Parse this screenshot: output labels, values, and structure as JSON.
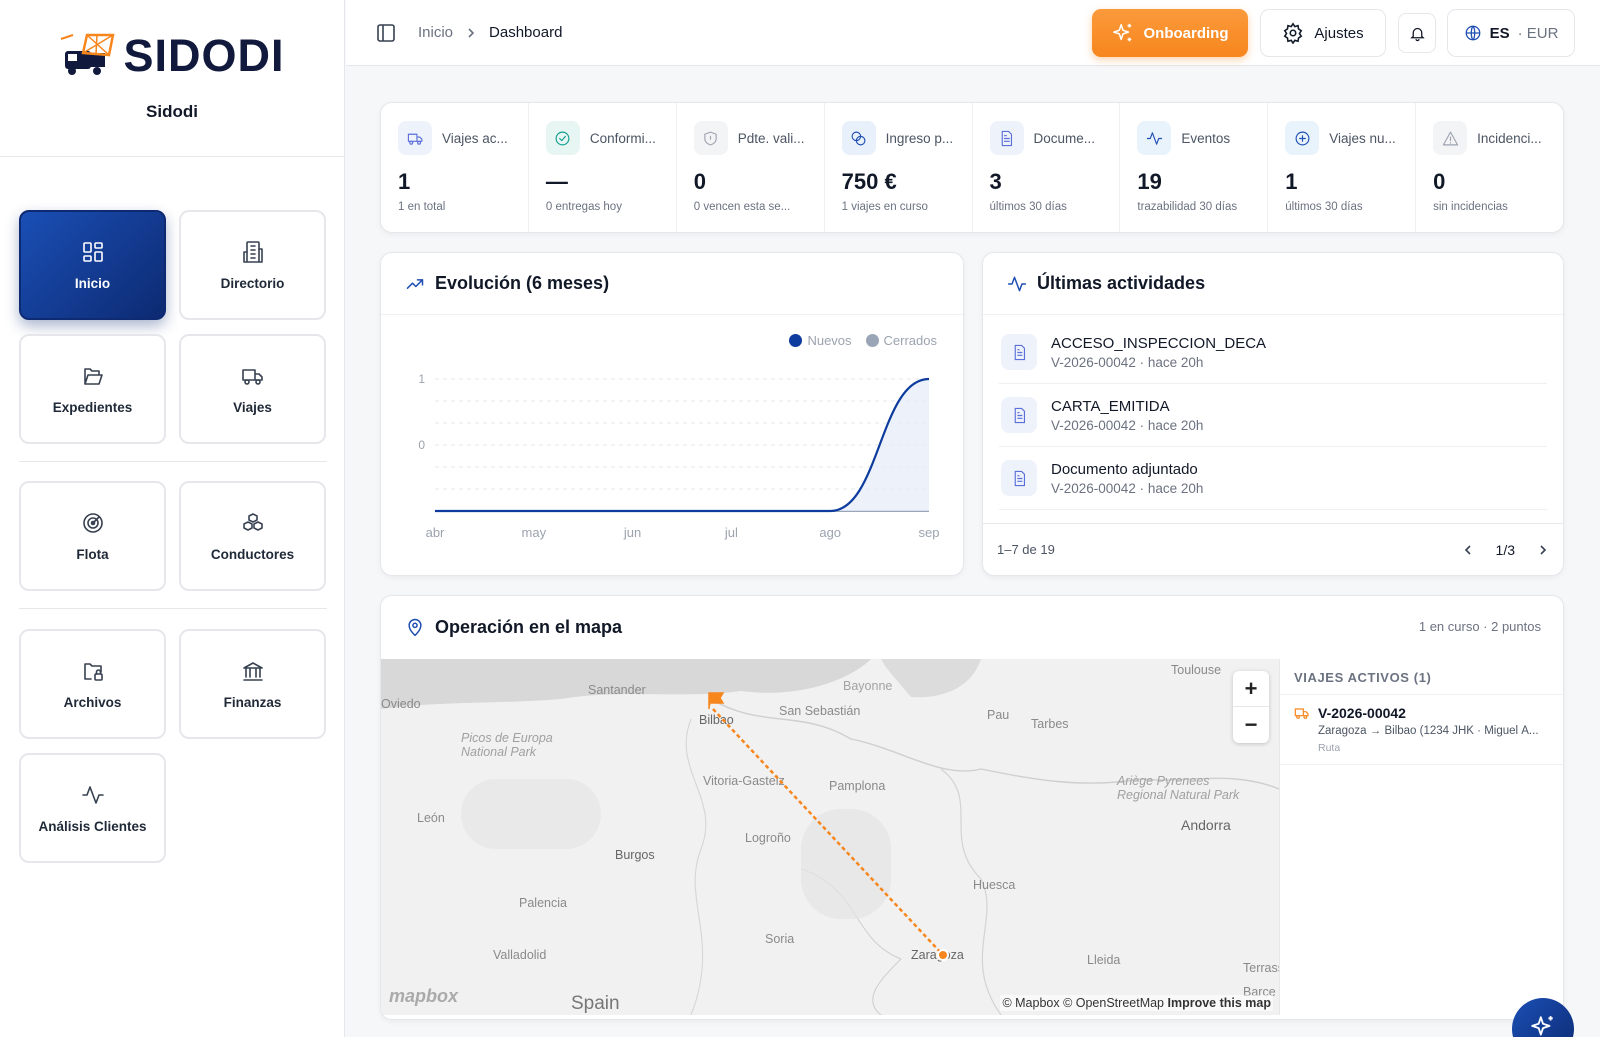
{
  "brand": {
    "name": "SIDODI",
    "org": "Sidodi"
  },
  "nav": [
    {
      "label": "Inicio",
      "icon": "grid-icon",
      "active": true
    },
    {
      "label": "Directorio",
      "icon": "building-icon"
    },
    {
      "label": "Expedientes",
      "icon": "folder-open-icon"
    },
    {
      "label": "Viajes",
      "icon": "truck-icon"
    },
    {
      "label": "Flota",
      "icon": "radar-icon"
    },
    {
      "label": "Conductores",
      "icon": "boxes-icon"
    },
    {
      "label": "Archivos",
      "icon": "folder-lock-icon"
    },
    {
      "label": "Finanzas",
      "icon": "bank-icon"
    },
    {
      "label": "Análisis Clientes",
      "icon": "activity-icon"
    }
  ],
  "topbar": {
    "crumb_home": "Inicio",
    "crumb_current": "Dashboard",
    "onboarding_label": "Onboarding",
    "settings_label": "Ajustes",
    "lang": "ES",
    "currency": "· EUR"
  },
  "kpis": [
    {
      "label": "Viajes ac...",
      "value": "1",
      "sub": "1 en total",
      "icon": "truck-icon",
      "color": "#5b6fd8",
      "bg": "#eef2fb"
    },
    {
      "label": "Conformi...",
      "value": "—",
      "sub": "0 entregas hoy",
      "icon": "check-circle-icon",
      "color": "#0f9f8f",
      "bg": "#e7f6f3"
    },
    {
      "label": "Pdte. vali...",
      "value": "0",
      "sub": "0 vencen esta se...",
      "icon": "shield-icon",
      "color": "#9ca3af",
      "bg": "#f3f4f6"
    },
    {
      "label": "Ingreso p...",
      "value": "750 €",
      "sub": "1 viajes en curso",
      "icon": "coins-icon",
      "color": "#1f4fb3",
      "bg": "#e8f0fb"
    },
    {
      "label": "Docume...",
      "value": "3",
      "sub": "últimos 30 días",
      "icon": "document-icon",
      "color": "#5b6fd8",
      "bg": "#eef2fb"
    },
    {
      "label": "Eventos",
      "value": "19",
      "sub": "trazabilidad 30 días",
      "icon": "activity-icon",
      "color": "#1f4fb3",
      "bg": "#e8f3fb"
    },
    {
      "label": "Viajes nu...",
      "value": "1",
      "sub": "últimos 30 días",
      "icon": "plus-circle-icon",
      "color": "#1f4fb3",
      "bg": "#e8f3fb"
    },
    {
      "label": "Incidenci...",
      "value": "0",
      "sub": "sin incidencias",
      "icon": "warning-icon",
      "color": "#9ca3af",
      "bg": "#f3f4f6"
    }
  ],
  "evolution": {
    "title": "Evolución (6 meses)"
  },
  "chart_data": {
    "type": "line",
    "categories": [
      "abr",
      "may",
      "jun",
      "jul",
      "ago",
      "sep"
    ],
    "series": [
      {
        "name": "Nuevos",
        "color": "#0d3c9e",
        "values": [
          0,
          0,
          0,
          0,
          0,
          1
        ]
      },
      {
        "name": "Cerrados",
        "color": "#9aa5b8",
        "values": [
          0,
          0,
          0,
          0,
          0,
          0
        ]
      }
    ],
    "yticks": [
      "1",
      "0"
    ],
    "ylim": [
      -1,
      1
    ]
  },
  "activities": {
    "title": "Últimas actividades",
    "items": [
      {
        "title": "ACCESO_INSPECCION_DECA",
        "sub": "V-2026-00042 · hace 20h"
      },
      {
        "title": "CARTA_EMITIDA",
        "sub": "V-2026-00042 · hace 20h"
      },
      {
        "title": "Documento adjuntado",
        "sub": "V-2026-00042 · hace 20h"
      }
    ],
    "range": "1–7 de 19",
    "page": "1/3"
  },
  "map": {
    "title": "Operación en el mapa",
    "summary": "1 en curso · 2 puntos",
    "places": [
      "Santander",
      "Oviedo",
      "Bayonne",
      "Toulouse",
      "San Sebastián",
      "Pau",
      "Tarbes",
      "Bilbao",
      "Picos de Europa National Park",
      "Vitoria-Gasteiz",
      "Pamplona",
      "Ariège Pyrenees Regional Natural Park",
      "Andorra",
      "León",
      "Logroño",
      "Burgos",
      "Huesca",
      "Palencia",
      "Soria",
      "Valladolid",
      "Zaragoza",
      "Lleida",
      "Terrassa",
      "Barce",
      "Spain"
    ],
    "attribution": "© Mapbox © OpenStreetMap",
    "improve": "Improve this map",
    "logo": "mapbox",
    "side_header": "VIAJES ACTIVOS (1)",
    "trip_id": "V-2026-00042",
    "trip_route": "Zaragoza → Bilbao (1234 JHK · Miguel Á...",
    "trip_status": "Ruta",
    "zoom_in": "+",
    "zoom_out": "−"
  }
}
